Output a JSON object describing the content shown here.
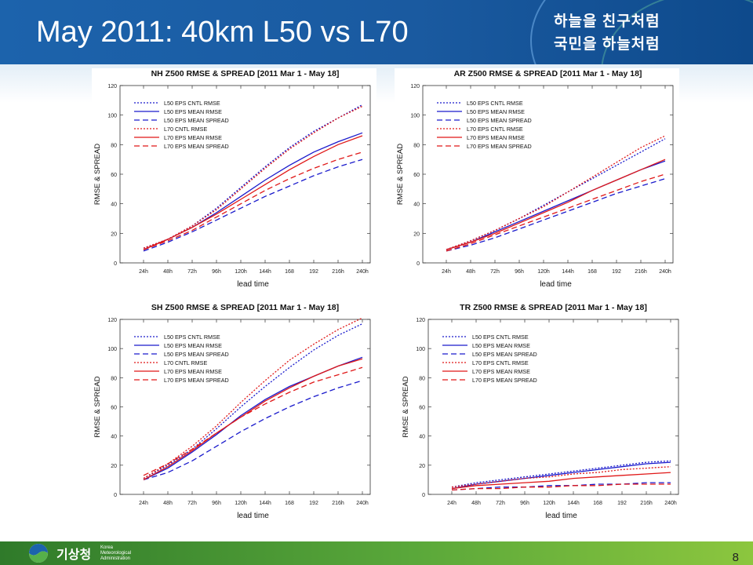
{
  "slide": {
    "title": "May 2011: 40km L50 vs L70",
    "slogan_line1": "하늘을 친구처럼",
    "slogan_line2": "국민을 하늘처럼",
    "logo_text": "기상청",
    "logo_sub": "Korea Meteorological Administration",
    "page_number": "8"
  },
  "chart_data": [
    {
      "type": "line",
      "title": "NH Z500 RMSE & SPREAD [2011 Mar 1 - May 18]",
      "xlabel": "lead time",
      "ylabel": "RMSE & SPREAD",
      "x": [
        "24h",
        "48h",
        "72h",
        "96h",
        "120h",
        "144h",
        "168",
        "192",
        "216h",
        "240h"
      ],
      "ylim": [
        0,
        120
      ],
      "yticks": [
        0,
        20,
        40,
        60,
        80,
        100,
        120
      ],
      "legend_position": "top-left",
      "series": [
        {
          "name": "L50 EPS CNTL RMSE",
          "color": "#1a1acc",
          "dash": "dotted",
          "values": [
            10,
            16,
            25,
            37,
            51,
            65,
            78,
            89,
            98,
            107
          ]
        },
        {
          "name": "L50 EPS MEAN RMSE",
          "color": "#1a1acc",
          "dash": "solid",
          "values": [
            9,
            16,
            24,
            34,
            45,
            56,
            66,
            75,
            82,
            88
          ]
        },
        {
          "name": "L50 EPS MEAN SPREAD",
          "color": "#1a1acc",
          "dash": "dashed",
          "values": [
            8,
            14,
            21,
            29,
            37,
            45,
            52,
            59,
            65,
            70
          ]
        },
        {
          "name": "L70 CNTL RMSE",
          "color": "#e01818",
          "dash": "dotted",
          "values": [
            10,
            16,
            25,
            36,
            50,
            64,
            77,
            88,
            98,
            106
          ]
        },
        {
          "name": "L70 EPS MEAN RMSE",
          "color": "#e01818",
          "dash": "solid",
          "values": [
            9,
            16,
            24,
            33,
            43,
            53,
            63,
            72,
            80,
            86
          ]
        },
        {
          "name": "L70 EPS MEAN SPREAD",
          "color": "#e01818",
          "dash": "dashed",
          "values": [
            9,
            15,
            22,
            31,
            40,
            49,
            57,
            64,
            70,
            75
          ]
        }
      ]
    },
    {
      "type": "line",
      "title": "AR Z500 RMSE & SPREAD [2011 Mar 1 - May 18]",
      "xlabel": "lead time",
      "ylabel": "RMSE & SPREAD",
      "x": [
        "24h",
        "48h",
        "72h",
        "96h",
        "120h",
        "144h",
        "168",
        "192",
        "216h",
        "240h"
      ],
      "ylim": [
        0,
        120
      ],
      "yticks": [
        0,
        20,
        40,
        60,
        80,
        100,
        120
      ],
      "legend_position": "top-left",
      "series": [
        {
          "name": "L50 EPS CNTL RMSE",
          "color": "#1a1acc",
          "dash": "dotted",
          "values": [
            9,
            15,
            22,
            30,
            39,
            48,
            57,
            66,
            75,
            84
          ]
        },
        {
          "name": "L50 EPS MEAN RMSE",
          "color": "#1a1acc",
          "dash": "solid",
          "values": [
            9,
            14,
            21,
            28,
            35,
            42,
            49,
            56,
            63,
            69
          ]
        },
        {
          "name": "L50 EPS MEAN SPREAD",
          "color": "#1a1acc",
          "dash": "dashed",
          "values": [
            8,
            12,
            17,
            23,
            29,
            35,
            41,
            47,
            52,
            57
          ]
        },
        {
          "name": "L70 EPS CNTL RMSE",
          "color": "#e01818",
          "dash": "dotted",
          "values": [
            9,
            15,
            22,
            30,
            38,
            48,
            58,
            68,
            78,
            86
          ]
        },
        {
          "name": "L70 EPS MEAN RMSE",
          "color": "#e01818",
          "dash": "solid",
          "values": [
            9,
            14,
            20,
            27,
            34,
            41,
            49,
            56,
            63,
            70
          ]
        },
        {
          "name": "L70 EPS MEAN SPREAD",
          "color": "#e01818",
          "dash": "dashed",
          "values": [
            8,
            13,
            19,
            25,
            31,
            37,
            43,
            49,
            55,
            60
          ]
        }
      ]
    },
    {
      "type": "line",
      "title": "SH Z500 RMSE & SPREAD [2011 Mar 1 - May 18]",
      "xlabel": "lead time",
      "ylabel": "RMSE & SPREAD",
      "x": [
        "24h",
        "48h",
        "72h",
        "96h",
        "120h",
        "144h",
        "168",
        "192",
        "216h",
        "240h"
      ],
      "ylim": [
        0,
        120
      ],
      "yticks": [
        0,
        20,
        40,
        60,
        80,
        100,
        120
      ],
      "legend_position": "top-left",
      "series": [
        {
          "name": "L50 EPS CNTL RMSE",
          "color": "#1a1acc",
          "dash": "dotted",
          "values": [
            11,
            20,
            31,
            45,
            60,
            74,
            87,
            99,
            109,
            117
          ]
        },
        {
          "name": "L50 EPS MEAN RMSE",
          "color": "#1a1acc",
          "dash": "solid",
          "values": [
            10,
            18,
            29,
            41,
            54,
            65,
            74,
            81,
            88,
            94
          ]
        },
        {
          "name": "L50 EPS MEAN SPREAD",
          "color": "#1a1acc",
          "dash": "dashed",
          "values": [
            10,
            15,
            23,
            33,
            43,
            52,
            60,
            67,
            73,
            78
          ]
        },
        {
          "name": "L70 CNTL RMSE",
          "color": "#e01818",
          "dash": "dotted",
          "values": [
            11,
            21,
            33,
            47,
            63,
            78,
            92,
            103,
            113,
            121
          ]
        },
        {
          "name": "L70 EPS MEAN RMSE",
          "color": "#e01818",
          "dash": "solid",
          "values": [
            10,
            19,
            30,
            42,
            53,
            64,
            73,
            81,
            88,
            93
          ]
        },
        {
          "name": "L70 EPS MEAN SPREAD",
          "color": "#e01818",
          "dash": "dashed",
          "values": [
            13,
            21,
            31,
            42,
            53,
            62,
            70,
            77,
            82,
            87
          ]
        }
      ]
    },
    {
      "type": "line",
      "title": "TR Z500 RMSE & SPREAD [2011 Mar 1 - May 18]",
      "xlabel": "lead time",
      "ylabel": "RMSE & SPREAD",
      "x": [
        "24h",
        "48h",
        "72h",
        "96h",
        "120h",
        "144h",
        "168",
        "192",
        "216h",
        "240h"
      ],
      "ylim": [
        0,
        120
      ],
      "yticks": [
        0,
        20,
        40,
        60,
        80,
        100,
        120
      ],
      "legend_position": "top-left",
      "series": [
        {
          "name": "L50 EPS CNTL RMSE",
          "color": "#1a1acc",
          "dash": "dotted",
          "values": [
            5,
            8,
            10,
            12,
            14,
            16,
            18,
            20,
            22,
            23
          ]
        },
        {
          "name": "L50 EPS MEAN RMSE",
          "color": "#1a1acc",
          "dash": "solid",
          "values": [
            4,
            7,
            9,
            11,
            13,
            15,
            17,
            19,
            21,
            22
          ]
        },
        {
          "name": "L50 EPS MEAN SPREAD",
          "color": "#1a1acc",
          "dash": "dashed",
          "values": [
            3,
            4,
            5,
            5,
            6,
            6,
            7,
            7,
            8,
            8
          ]
        },
        {
          "name": "L70 EPS CNTL RMSE",
          "color": "#e01818",
          "dash": "dotted",
          "values": [
            5,
            7,
            9,
            11,
            12,
            14,
            15,
            17,
            18,
            19
          ]
        },
        {
          "name": "L70 EPS MEAN RMSE",
          "color": "#e01818",
          "dash": "solid",
          "values": [
            4,
            6,
            7,
            8,
            9,
            11,
            12,
            13,
            14,
            15
          ]
        },
        {
          "name": "L70 EPS MEAN SPREAD",
          "color": "#e01818",
          "dash": "dashed",
          "values": [
            3,
            4,
            4,
            5,
            5,
            6,
            6,
            7,
            7,
            7
          ]
        }
      ]
    }
  ]
}
